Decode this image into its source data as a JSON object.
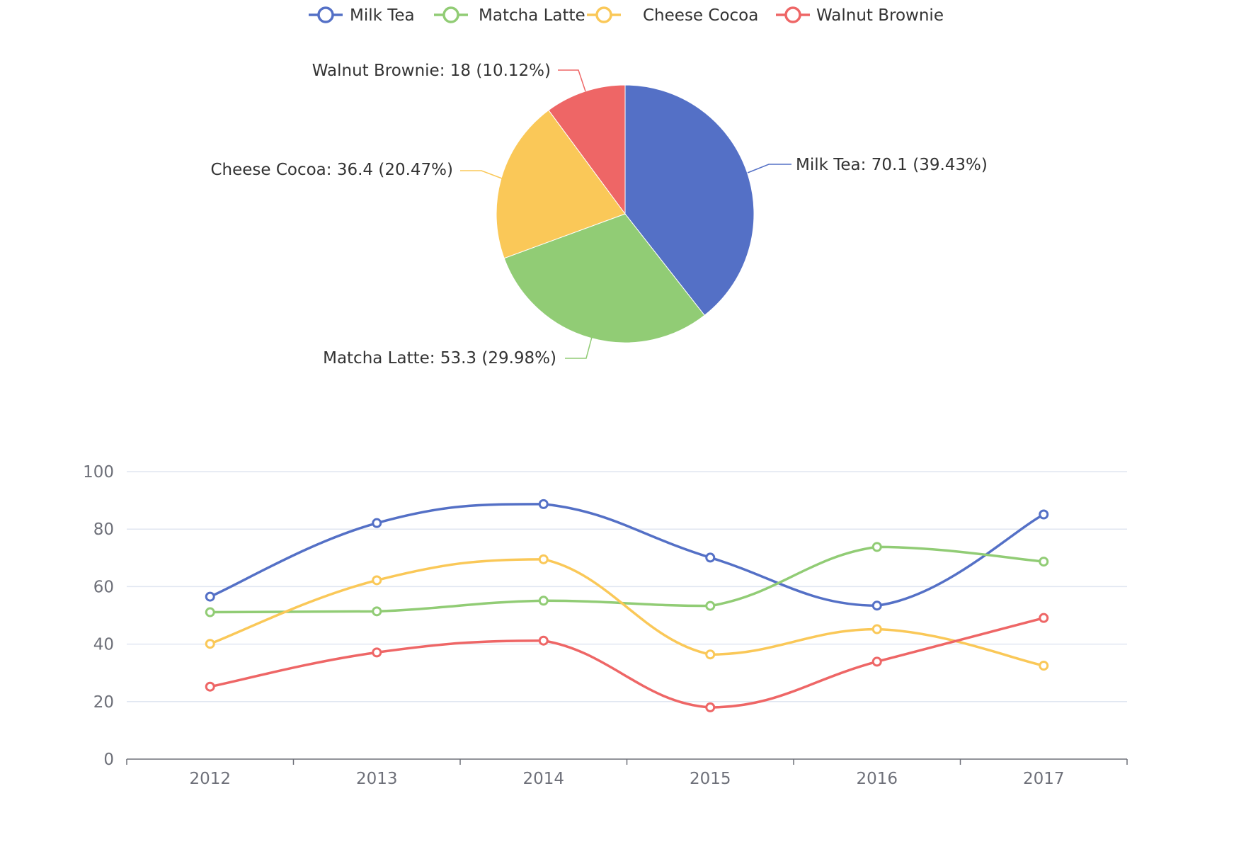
{
  "chart_data": [
    {
      "type": "pie",
      "legend": {
        "position": "top-center"
      },
      "slices": [
        {
          "name": "Milk Tea",
          "value": 70.1,
          "label": "Milk Tea: 70.1 (39.43%)",
          "color": "#5470c6"
        },
        {
          "name": "Matcha Latte",
          "value": 53.3,
          "label": "Matcha Latte: 53.3 (29.98%)",
          "color": "#91cc75"
        },
        {
          "name": "Cheese Cocoa",
          "value": 36.4,
          "label": "Cheese Cocoa: 36.4 (20.47%)",
          "color": "#fac858"
        },
        {
          "name": "Walnut Brownie",
          "value": 18,
          "label": "Walnut Brownie: 18 (10.12%)",
          "color": "#ee6666"
        }
      ]
    },
    {
      "type": "line",
      "smooth": true,
      "categories": [
        "2012",
        "2013",
        "2014",
        "2015",
        "2016",
        "2017"
      ],
      "ylim": [
        0,
        100
      ],
      "yticks": [
        0,
        20,
        40,
        60,
        80,
        100
      ],
      "grid": true,
      "series": [
        {
          "name": "Milk Tea",
          "color": "#5470c6",
          "values": [
            56.5,
            82.1,
            88.7,
            70.1,
            53.4,
            85.1
          ]
        },
        {
          "name": "Matcha Latte",
          "color": "#91cc75",
          "values": [
            51.1,
            51.4,
            55.1,
            53.3,
            73.8,
            68.7
          ]
        },
        {
          "name": "Cheese Cocoa",
          "color": "#fac858",
          "values": [
            40.1,
            62.2,
            69.5,
            36.4,
            45.2,
            32.5
          ]
        },
        {
          "name": "Walnut Brownie",
          "color": "#ee6666",
          "values": [
            25.2,
            37.1,
            41.2,
            18,
            33.9,
            49.1
          ]
        }
      ]
    }
  ]
}
